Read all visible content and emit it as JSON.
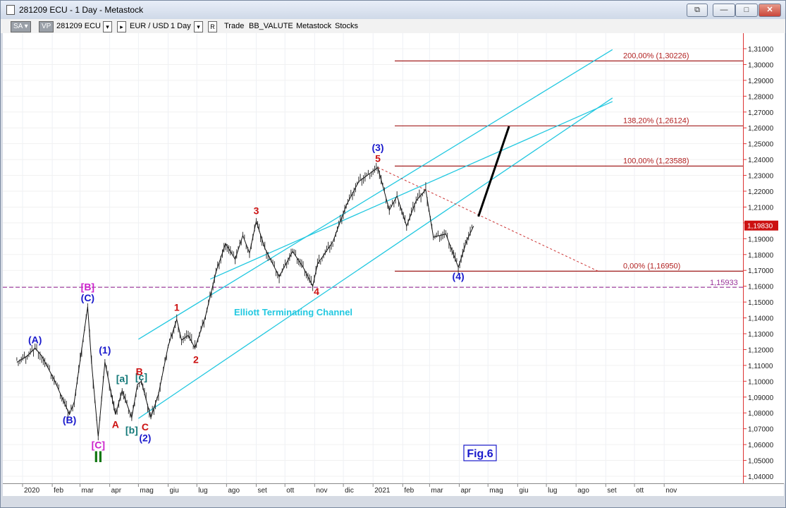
{
  "window": {
    "title": "281209 ECU - 1 Day - Metastock",
    "buttons": [
      "⧉",
      "—",
      "□",
      "✕"
    ]
  },
  "toolbar": {
    "sa_label": "SA",
    "vp_label": "VP",
    "symbol": "281209 ECU",
    "instrument": "EUR / USD",
    "period": "1 Day",
    "trade": "Trade",
    "indicator": "BB_VALUTE",
    "source": "Metastock",
    "category": "Stocks"
  },
  "chart_data": {
    "type": "line",
    "ylim": [
      1.04,
      1.315
    ],
    "y_ticks": [
      "1,31000",
      "1,30000",
      "1,29000",
      "1,28000",
      "1,27000",
      "1,26000",
      "1,25000",
      "1,24000",
      "1,23000",
      "1,22000",
      "1,21000",
      "1,20000",
      "1,19000",
      "1,18000",
      "1,17000",
      "1,16000",
      "1,15000",
      "1,14000",
      "1,13000",
      "1,12000",
      "1,11000",
      "1,10000",
      "1,09000",
      "1,08000",
      "1,07000",
      "1,06000",
      "1,05000",
      "1,04000"
    ],
    "y_tick_values": [
      1.31,
      1.3,
      1.29,
      1.28,
      1.27,
      1.26,
      1.25,
      1.24,
      1.23,
      1.22,
      1.21,
      1.2,
      1.19,
      1.18,
      1.17,
      1.16,
      1.15,
      1.14,
      1.13,
      1.12,
      1.11,
      1.1,
      1.09,
      1.08,
      1.07,
      1.06,
      1.05,
      1.04
    ],
    "x_labels": [
      "2020",
      "feb",
      "mar",
      "apr",
      "mag",
      "giu",
      "lug",
      "ago",
      "set",
      "ott",
      "nov",
      "dic",
      "2021",
      "feb",
      "mar",
      "apr",
      "mag",
      "giu",
      "lug",
      "ago",
      "set",
      "ott",
      "nov"
    ],
    "last_price": "1,19830",
    "last_value": 1.1983,
    "hline_label": "1,15933",
    "hline_value": 1.15933,
    "series": [
      {
        "x": [
          "2019-12-26",
          "2020-01-06",
          "2020-01-14",
          "2020-01-21",
          "2020-02-03",
          "2020-02-19",
          "2020-02-24",
          "2020-03-09",
          "2020-03-13",
          "2020-03-20",
          "2020-03-27",
          "2020-04-07",
          "2020-04-14",
          "2020-04-24",
          "2020-04-30",
          "2020-05-04",
          "2020-05-14",
          "2020-05-22",
          "2020-06-01",
          "2020-06-10",
          "2020-06-15",
          "2020-06-22",
          "2020-06-29",
          "2020-07-10",
          "2020-07-21",
          "2020-07-31",
          "2020-08-10",
          "2020-08-18",
          "2020-08-25",
          "2020-09-01",
          "2020-09-10",
          "2020-09-25",
          "2020-10-09",
          "2020-10-20",
          "2020-10-30",
          "2020-11-04",
          "2020-11-20",
          "2020-12-04",
          "2020-12-17",
          "2021-01-06",
          "2021-01-18",
          "2021-01-26",
          "2021-02-05",
          "2021-02-15",
          "2021-02-25",
          "2021-03-05",
          "2021-03-18",
          "2021-03-31",
          "2021-04-09",
          "2021-04-16"
        ],
        "values": [
          1.112,
          1.116,
          1.121,
          1.116,
          1.101,
          1.079,
          1.087,
          1.147,
          1.112,
          1.065,
          1.112,
          1.079,
          1.094,
          1.077,
          1.098,
          1.1,
          1.077,
          1.092,
          1.122,
          1.139,
          1.126,
          1.129,
          1.121,
          1.141,
          1.169,
          1.187,
          1.177,
          1.192,
          1.181,
          1.201,
          1.184,
          1.166,
          1.182,
          1.172,
          1.16,
          1.174,
          1.188,
          1.211,
          1.226,
          1.235,
          1.208,
          1.217,
          1.198,
          1.214,
          1.221,
          1.191,
          1.193,
          1.172,
          1.189,
          1.198
        ]
      }
    ],
    "projection": {
      "x": [
        "2021-04-21",
        "2021-05-23"
      ],
      "values": [
        1.204,
        1.261
      ]
    },
    "fib_levels": [
      {
        "label": "200,00% (1,30226)",
        "value": 1.30226
      },
      {
        "label": "138,20% (1,26124)",
        "value": 1.26124
      },
      {
        "label": "100,00% (1,23588)",
        "value": 1.23588
      },
      {
        "label": "0,00% (1,16950)",
        "value": 1.1695
      }
    ],
    "channel_lines": [
      {
        "x": [
          "2020-05-01",
          "2021-09-08"
        ],
        "values": [
          1.1265,
          1.3094
        ]
      },
      {
        "x": [
          "2020-05-01",
          "2021-09-08"
        ],
        "values": [
          1.0765,
          1.2789
        ]
      },
      {
        "x": [
          "2020-07-15",
          "2021-09-08"
        ],
        "values": [
          1.1645,
          1.2766
        ]
      }
    ],
    "trendline": {
      "x": [
        "2021-01-06",
        "2021-08-24"
      ],
      "values": [
        1.235,
        1.1695
      ]
    },
    "channel_label": "Elliott Terminating Channel",
    "wave_labels": [
      {
        "text": "(A)",
        "x": "2020-01-14",
        "y": 1.124,
        "color": "#1a1acc"
      },
      {
        "text": "(B)",
        "x": "2020-02-19",
        "y": 1.0735,
        "color": "#1a1acc"
      },
      {
        "text": "(C)",
        "x": "2020-03-09",
        "y": 1.1505,
        "color": "#1a1acc"
      },
      {
        "text": "[B]",
        "x": "2020-03-09",
        "y": 1.1575,
        "color": "#cc22cc"
      },
      {
        "text": "[C]",
        "x": "2020-03-20",
        "y": 1.0575,
        "color": "#cc22cc"
      },
      {
        "text": "II",
        "x": "2020-03-20",
        "y": 1.049,
        "color": "#117711"
      },
      {
        "text": "(1)",
        "x": "2020-03-27",
        "y": 1.1175,
        "color": "#1a1acc"
      },
      {
        "text": "A",
        "x": "2020-04-07",
        "y": 1.0705,
        "color": "#cc1111"
      },
      {
        "text": "[a]",
        "x": "2020-04-14",
        "y": 1.0995,
        "color": "#117777"
      },
      {
        "text": "[b]",
        "x": "2020-04-24",
        "y": 1.067,
        "color": "#117777"
      },
      {
        "text": "[c]",
        "x": "2020-05-04",
        "y": 1.1005,
        "color": "#117777"
      },
      {
        "text": "B",
        "x": "2020-05-02",
        "y": 1.104,
        "color": "#cc1111"
      },
      {
        "text": "C",
        "x": "2020-05-08",
        "y": 1.069,
        "color": "#cc1111"
      },
      {
        "text": "(2)",
        "x": "2020-05-08",
        "y": 1.062,
        "color": "#1a1acc"
      },
      {
        "text": "1",
        "x": "2020-06-10",
        "y": 1.1445,
        "color": "#cc1111"
      },
      {
        "text": "2",
        "x": "2020-06-30",
        "y": 1.1115,
        "color": "#cc1111"
      },
      {
        "text": "3",
        "x": "2020-09-01",
        "y": 1.2055,
        "color": "#cc1111"
      },
      {
        "text": "4",
        "x": "2020-11-03",
        "y": 1.1545,
        "color": "#cc1111"
      },
      {
        "text": "(3)",
        "x": "2021-01-06",
        "y": 1.2455,
        "color": "#1a1acc"
      },
      {
        "text": "5",
        "x": "2021-01-06",
        "y": 1.2385,
        "color": "#cc1111"
      },
      {
        "text": "(4)",
        "x": "2021-03-31",
        "y": 1.164,
        "color": "#1a1acc"
      }
    ],
    "fig_label": "Fig.6"
  }
}
